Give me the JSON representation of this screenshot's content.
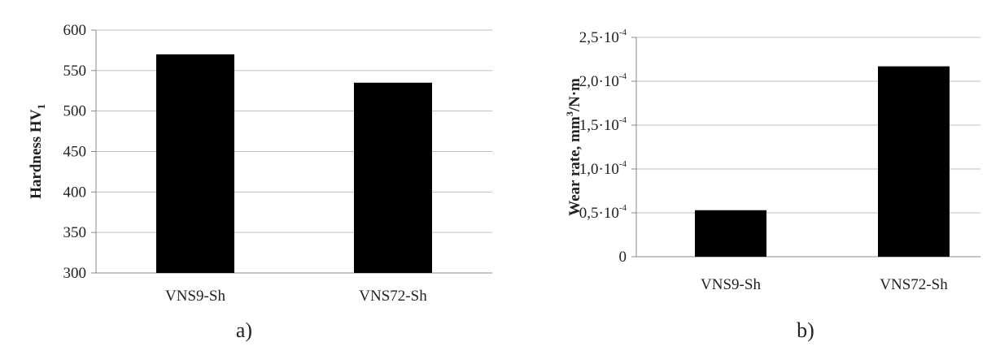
{
  "chart_data": [
    {
      "type": "bar",
      "panel_label": "a)",
      "categories": [
        "VNS9-Sh",
        "VNS72-Sh"
      ],
      "values": [
        570,
        535
      ],
      "ylabel": "Hardness HV",
      "ylabel_sub": "1",
      "ylim": [
        300,
        600
      ],
      "yticks": [
        300,
        350,
        400,
        450,
        500,
        550,
        600
      ],
      "ytick_labels": [
        "300",
        "350",
        "400",
        "450",
        "500",
        "550",
        "600"
      ],
      "grid": true,
      "bar_color": "#000000",
      "grid_color": "#bfbfbf"
    },
    {
      "type": "bar",
      "panel_label": "b)",
      "categories": [
        "VNS9-Sh",
        "VNS72-Sh"
      ],
      "values": [
        5.3e-05,
        0.000217
      ],
      "ylabel": "Wear rate, mm",
      "ylabel_sup": "3",
      "ylabel_tail": "/N·m",
      "ylim": [
        0,
        0.00025
      ],
      "yticks": [
        0,
        5e-05,
        0.0001,
        0.00015,
        0.0002,
        0.00025
      ],
      "ytick_labels": [
        {
          "base": "0",
          "exp": ""
        },
        {
          "base": "0,5·10",
          "exp": "-4"
        },
        {
          "base": "1,0·10",
          "exp": "-4"
        },
        {
          "base": "1,5·10",
          "exp": "-4"
        },
        {
          "base": "2,0·10",
          "exp": "-4"
        },
        {
          "base": "2,5·10",
          "exp": "-4"
        }
      ],
      "grid": true,
      "bar_color": "#000000",
      "grid_color": "#bfbfbf"
    }
  ]
}
